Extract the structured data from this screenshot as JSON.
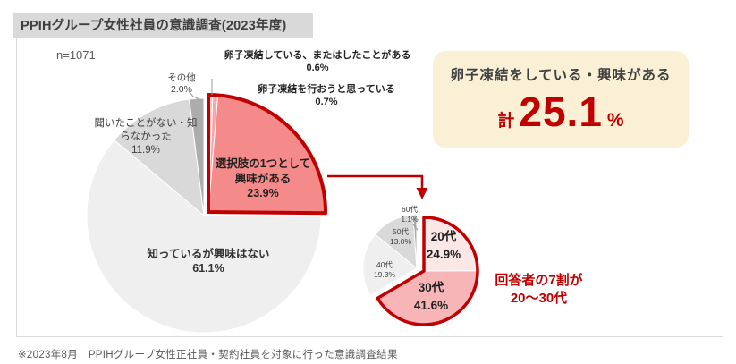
{
  "title_bar": {
    "title": "PPIHグループ女性社員の意識調査(2023年度)"
  },
  "survey": {
    "sample_size": "n=1071"
  },
  "summary_box": {
    "title": "卵子凍結をしている・興味がある",
    "prefix": "計",
    "value": "25.1",
    "unit": "%"
  },
  "callout": {
    "line1": "回答者の7割が",
    "line2": "20〜30代"
  },
  "footnote": "※2023年8月　PPIHグループ女性正社員・契約社員を対象に行った意識調査結果",
  "colors": {
    "accent_red": "#C00000",
    "summary_box_bg": "#FAF0D6",
    "title_bar_bg": "#D9D9D9",
    "card_border": "#D9D9D9"
  },
  "chart_data": [
    {
      "type": "pie",
      "name": "egg-freezing-awareness",
      "n": 1071,
      "start": "top",
      "direction": "clockwise",
      "highlight_total_pct": "25.1%",
      "segments": [
        {
          "label": "卵子凍結している、またはしたことがある",
          "value": 0.6,
          "pct": "0.6%",
          "color": "#F7C6C6",
          "highlighted": true
        },
        {
          "label": "卵子凍結を行おうと思っている",
          "value": 0.7,
          "pct": "0.7%",
          "color": "#F3A9A9",
          "highlighted": true
        },
        {
          "label": "選択肢の1つとして興味がある",
          "value": 23.9,
          "pct": "23.9%",
          "color": "#F58A8A",
          "highlighted": true
        },
        {
          "label": "知っているが興味はない",
          "value": 61.1,
          "pct": "61.1%",
          "color": "#EFEFEF",
          "highlighted": false
        },
        {
          "label": "聞いたことがない・知らなかった",
          "value": 11.9,
          "pct": "11.9%",
          "color": "#D9D9D9",
          "highlighted": false
        },
        {
          "label": "その他",
          "value": 2.0,
          "pct": "2.0%",
          "color": "#ACACAC",
          "highlighted": false
        }
      ]
    },
    {
      "type": "pie",
      "name": "interested-age-breakdown",
      "start": "top",
      "direction": "clockwise",
      "segments": [
        {
          "label": "20代",
          "value": 24.9,
          "pct": "24.9%",
          "color": "#FCE7E7",
          "highlighted": true
        },
        {
          "label": "30代",
          "value": 41.6,
          "pct": "41.6%",
          "color": "#F7B5B8",
          "highlighted": true
        },
        {
          "label": "40代",
          "value": 19.3,
          "pct": "19.3%",
          "color": "#EFEFEF",
          "highlighted": false
        },
        {
          "label": "50代",
          "value": 13.0,
          "pct": "13.0%",
          "color": "#D9D9D9",
          "highlighted": false
        },
        {
          "label": "60代",
          "value": 1.1,
          "pct": "1.1%",
          "color": "#ACACAC",
          "highlighted": false
        }
      ]
    }
  ]
}
